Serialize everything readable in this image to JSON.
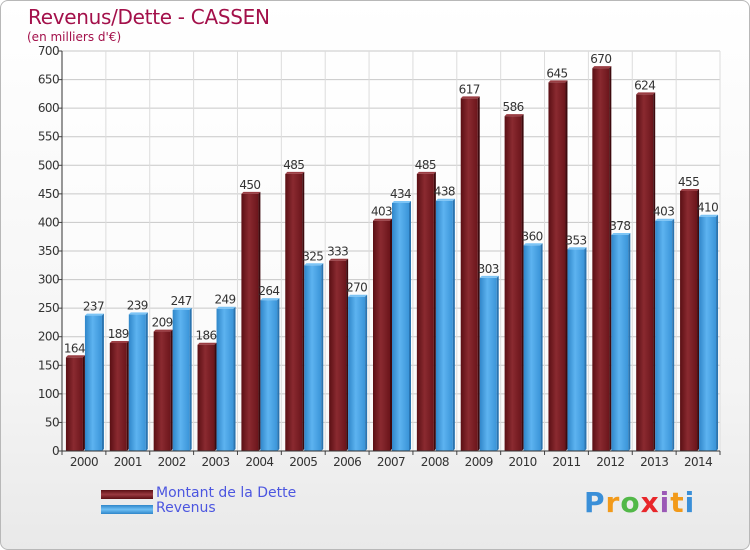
{
  "title": "Revenus/Dette - CASSEN",
  "subtitle": "(en milliers d'€)",
  "colors": {
    "dette": "#7a1c22",
    "revenus": "#3d9be0",
    "title": "#a3104a",
    "legend_text": "#4c56e0"
  },
  "legend": {
    "dette_label": "Montant de la Dette",
    "revenus_label": "Revenus"
  },
  "logo": {
    "text": "Proxiti"
  },
  "chart_data": {
    "type": "bar",
    "title": "Revenus/Dette - CASSEN",
    "subtitle": "(en milliers d'€)",
    "categories": [
      "2000",
      "2001",
      "2002",
      "2003",
      "2004",
      "2005",
      "2006",
      "2007",
      "2008",
      "2009",
      "2010",
      "2011",
      "2012",
      "2013",
      "2014"
    ],
    "series": [
      {
        "name": "Montant de la Dette",
        "values": [
          164,
          189,
          209,
          186,
          450,
          485,
          333,
          403,
          485,
          617,
          586,
          645,
          670,
          624,
          455
        ]
      },
      {
        "name": "Revenus",
        "values": [
          237,
          239,
          247,
          249,
          264,
          325,
          270,
          434,
          438,
          303,
          360,
          353,
          378,
          403,
          410
        ]
      }
    ],
    "ylim": [
      0,
      700
    ],
    "yticks": [
      0,
      50,
      100,
      150,
      200,
      250,
      300,
      350,
      400,
      450,
      500,
      550,
      600,
      650,
      700
    ],
    "grid": true,
    "legend_position": "bottom-left"
  }
}
